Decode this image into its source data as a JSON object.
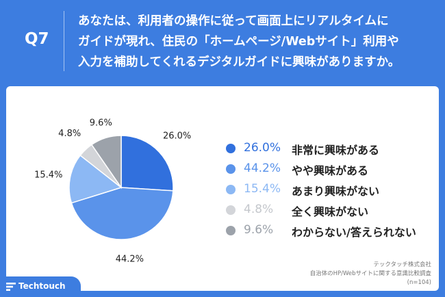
{
  "header": {
    "question_label": "Q7",
    "question_lines": [
      "あなたは、利用者の操作に従って画面上にリアルタイムに",
      "ガイドが現れ、住民の「ホームページ/Webサイト」利用や",
      "入力を補助してくれるデジタルガイドに興味がありますか。"
    ]
  },
  "chart_data": {
    "type": "pie",
    "title": "",
    "slices": [
      {
        "label": "非常に興味がある",
        "value": 26.0,
        "display": "26.0%",
        "color": "#3170dd"
      },
      {
        "label": "やや興味がある",
        "value": 44.2,
        "display": "44.2%",
        "color": "#5a93ea"
      },
      {
        "label": "あまり興味がない",
        "value": 15.4,
        "display": "15.4%",
        "color": "#8cb8f4"
      },
      {
        "label": "全く興味がない",
        "value": 4.8,
        "display": "4.8%",
        "color": "#d3d5d9"
      },
      {
        "label": "わからない/答えられない",
        "value": 9.6,
        "display": "9.6%",
        "color": "#9ca2aa"
      }
    ],
    "legend_position": "right"
  },
  "source": {
    "company": "テックタッチ株式会社",
    "survey": "自治体のHP/Webサイトに関する意識比較調査",
    "sample": "(n=104)"
  },
  "logo": {
    "text": "Techtouch"
  }
}
